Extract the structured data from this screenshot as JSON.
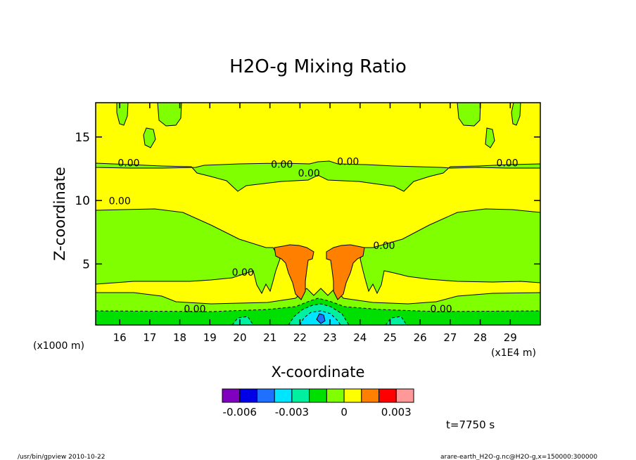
{
  "chart_data": {
    "type": "heatmap",
    "title": "H2O-g Mixing Ratio",
    "xlabel": "X-coordinate",
    "ylabel": "Z-coordinate",
    "x_unit_left": "(x1000 m)",
    "x_unit_right": "(x1E4 m)",
    "xlim": [
      15.2,
      30.0
    ],
    "ylim": [
      0.2,
      17.7
    ],
    "x_ticks": [
      16,
      17,
      18,
      19,
      20,
      21,
      22,
      23,
      24,
      25,
      26,
      27,
      28,
      29
    ],
    "y_ticks": [
      5,
      10,
      15
    ],
    "contour_labels": [
      {
        "text": "0.00",
        "x": 16.3,
        "y": 12.8
      },
      {
        "text": "0.00",
        "x": 21.4,
        "y": 12.7
      },
      {
        "text": "0.00",
        "x": 22.3,
        "y": 12.0
      },
      {
        "text": "0.00",
        "x": 23.6,
        "y": 12.9
      },
      {
        "text": "0.00",
        "x": 28.9,
        "y": 12.8
      },
      {
        "text": "0.00",
        "x": 16.0,
        "y": 9.8
      },
      {
        "text": "0.00",
        "x": 24.8,
        "y": 6.3
      },
      {
        "text": "0.00",
        "x": 20.1,
        "y": 4.2
      },
      {
        "text": "0.00",
        "x": 18.5,
        "y": 1.3
      },
      {
        "text": "0.00",
        "x": 26.7,
        "y": 1.3
      }
    ],
    "colorbar": {
      "colors": [
        "#7f00bf",
        "#0000e6",
        "#1f70ff",
        "#00e5ff",
        "#00f0a0",
        "#00e000",
        "#7fff00",
        "#ffff00",
        "#ff8000",
        "#ff0000",
        "#ff9999"
      ],
      "tick_labels": [
        "-0.006",
        "-0.003",
        "0",
        "0.003"
      ]
    },
    "field_colors": {
      "background": "#ffff00",
      "moist": "#7fff00",
      "plume": "#ff7f00",
      "near_surface": "#00e000",
      "mid_low": "#00f0a0",
      "low": "#00e5ff",
      "very_low": "#1f70ff"
    }
  },
  "annotations": {
    "time": "t=7750 s",
    "footer_left": "/usr/bin/gpview  2010-10-22",
    "footer_right": "arare-earth_H2O-g.nc@H2O-g,x=150000:300000"
  }
}
